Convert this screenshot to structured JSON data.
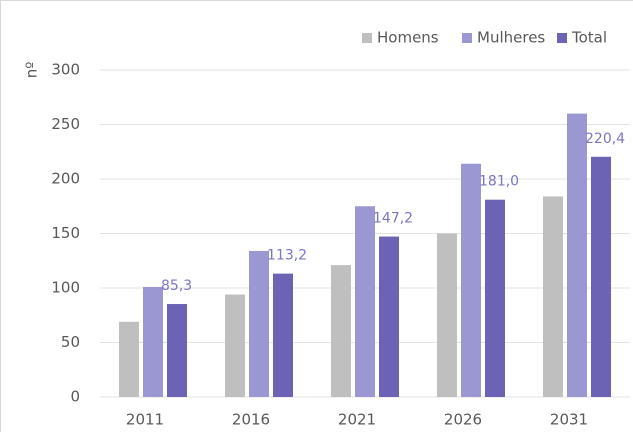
{
  "chart_data": {
    "type": "bar",
    "y_label": "nº",
    "categories": [
      "2011",
      "2016",
      "2021",
      "2026",
      "2031"
    ],
    "series": [
      {
        "name": "Homens",
        "color": "#bfbfbf",
        "values": [
          69,
          94,
          121,
          150,
          184
        ]
      },
      {
        "name": "Mulheres",
        "color": "#9b97d3",
        "values": [
          101,
          134,
          175,
          214,
          260
        ]
      },
      {
        "name": "Total",
        "color": "#6c63b5",
        "values": [
          85.3,
          113.2,
          147.2,
          181.0,
          220.4
        ],
        "value_labels": [
          "85,3",
          "113,2",
          "147,2",
          "181,0",
          "220,4"
        ]
      }
    ],
    "ylim": [
      0,
      300
    ],
    "yticks": [
      0,
      50,
      100,
      150,
      200,
      250,
      300
    ],
    "grid": true,
    "legend": "top-right"
  }
}
